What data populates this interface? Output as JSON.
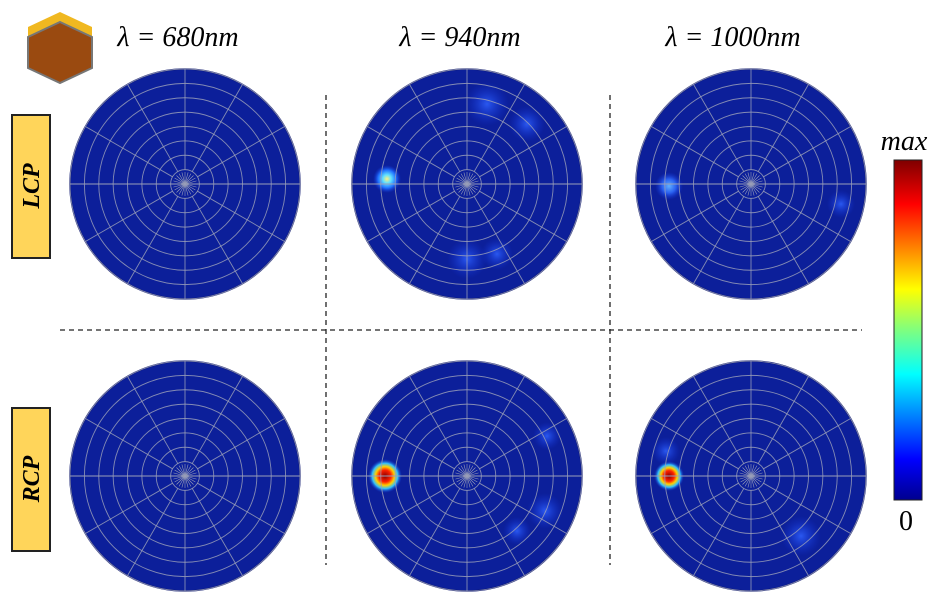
{
  "columns": [
    {
      "title": "λ = 680nm"
    },
    {
      "title": "λ = 940nm"
    },
    {
      "title": "λ = 1000nm"
    }
  ],
  "rows": [
    {
      "label": "LCP"
    },
    {
      "label": "RCP"
    }
  ],
  "colorbar": {
    "max_label": "max",
    "min_label": "0"
  }
}
